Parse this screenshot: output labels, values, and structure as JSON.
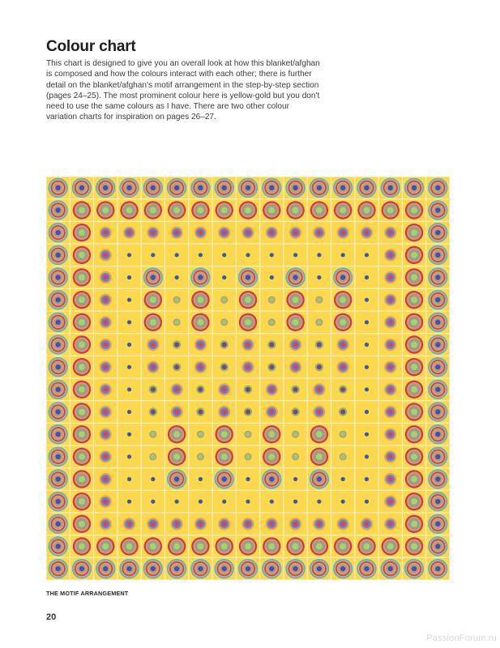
{
  "header": {
    "title": "Colour chart",
    "intro": "This chart is designed to give you an overall look at how this blanket/afghan is composed and how the colours interact with each other; there is further detail on the blanket/afghan's motif arrangement in the step-by-step section (pages 24–25). The most prominent colour here is yellow-gold but you don't need to use the same colours as I have. There are two other colour variation charts for inspiration on pages 26–27."
  },
  "chart": {
    "background": "#fbd84e",
    "motifs": {
      "A": [
        "#4fb6d6",
        "#e9a052",
        "#b0466c",
        "#d1a06c",
        "#b89c80",
        "#4a4cae"
      ],
      "B": [
        "#c93a4a",
        "#d59a6a",
        "#9c9a8a",
        "#a8d06e"
      ],
      "C": [
        "#eaa050",
        "#5e84d2",
        "#e2404e"
      ],
      "D": [
        "#3a5aa2"
      ],
      "G": [
        "#b4a07e",
        "#9cc86e"
      ],
      "I": [
        "#8cb862",
        "#8a3a8c"
      ]
    },
    "rows": [
      "AAAAAAAAAAAAAAAAA",
      "ABBBBBBBBBBBBBBBA",
      "ABCCCCCCCCCCCCCBA",
      "ABCDDDDDDDDDDDCBA",
      "ABCDADADADADADCBA",
      "ABCDBGBGBGBGBDCBA",
      "ABCDBGBGBGBGBDCBA",
      "ABCDCICICICICDCBA",
      "ABCDCICICICICDCBA",
      "ABCDICICICICIDCBA",
      "ABCDICICICICIDCBA",
      "ABCDGBGBGBGBGDCBA",
      "ABCDGBGBGBGBGDCBA",
      "ABCDDADADADADDCBA",
      "ABCDDDDDDDDDDDCBA",
      "ABCCCCCCCCCCCCCBA",
      "ABBBBBBBBBBBBBBBA",
      "AAAAAAAAAAAAAAAAA"
    ]
  },
  "caption": "THE MOTIF ARRANGEMENT",
  "page_number": "20",
  "watermark": "PassionForum.ru"
}
